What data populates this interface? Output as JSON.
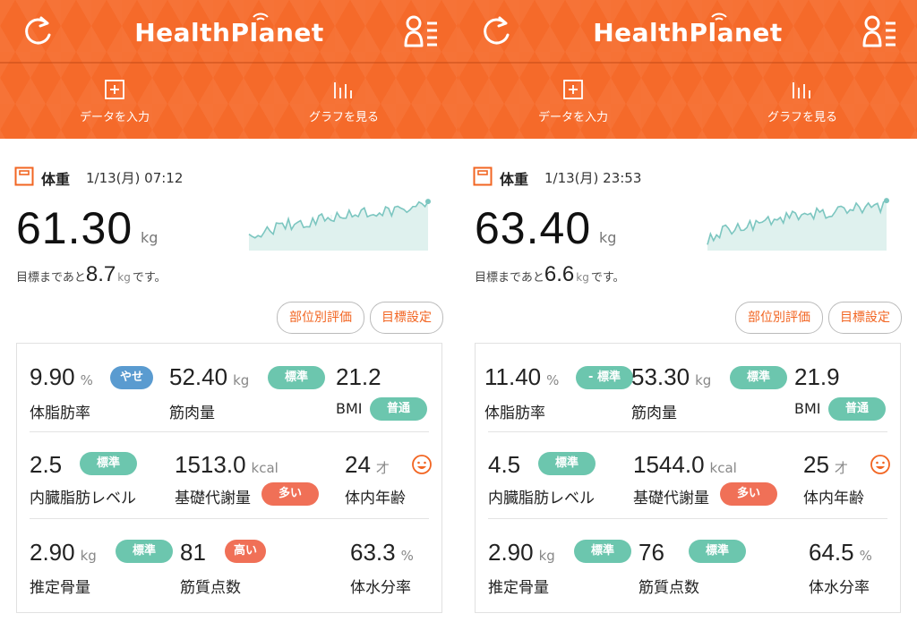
{
  "app": {
    "logo": "HealthPlanet",
    "menu": {
      "input_label": "データを入力",
      "graph_label": "グラフを見る"
    },
    "icons": {
      "refresh": "refresh-icon",
      "profile": "profile-menu-icon",
      "input": "plus-square-icon",
      "graph": "bar-graph-icon",
      "weight": "scale-icon",
      "age": "smile-face-icon"
    }
  },
  "colors": {
    "brand_orange": "#f56a2a",
    "badge_green": "#6cc6ae",
    "badge_blue": "#5a9bd0",
    "badge_red": "#f07057",
    "chart_line": "#7cc6c0"
  },
  "panels": [
    {
      "weight": {
        "label": "体重",
        "date": "1/13(月) 07:12",
        "value": "61.30",
        "unit": "kg"
      },
      "goal": {
        "prefix": "目標まであと",
        "value": "8.7",
        "unit": "kg",
        "suffix": "です。"
      },
      "buttons": {
        "part_eval": "部位別評価",
        "goal_setting": "目標設定"
      },
      "metrics": {
        "body_fat": {
          "value": "9.90",
          "unit": "%",
          "badge": "やせ",
          "label": "体脂肪率"
        },
        "muscle": {
          "value": "52.40",
          "unit": "kg",
          "badge": "標準",
          "label": "筋肉量"
        },
        "bmi": {
          "value": "21.2",
          "badge": "普通",
          "label": "BMI"
        },
        "visceral": {
          "value": "2.5",
          "badge": "標準",
          "label": "内臓脂肪レベル"
        },
        "bmr": {
          "value": "1513.0",
          "unit": "kcal",
          "badge": "多い",
          "label": "基礎代謝量"
        },
        "age": {
          "value": "24",
          "unit": "才",
          "label": "体内年齢"
        },
        "bone": {
          "value": "2.90",
          "unit": "kg",
          "badge": "標準",
          "label": "推定骨量"
        },
        "muscle_score": {
          "value": "81",
          "badge": "高い",
          "label": "筋質点数"
        },
        "water": {
          "value": "63.3",
          "unit": "%",
          "label": "体水分率"
        }
      }
    },
    {
      "weight": {
        "label": "体重",
        "date": "1/13(月) 23:53",
        "value": "63.40",
        "unit": "kg"
      },
      "goal": {
        "prefix": "目標まであと",
        "value": "6.6",
        "unit": "kg",
        "suffix": "です。"
      },
      "buttons": {
        "part_eval": "部位別評価",
        "goal_setting": "目標設定"
      },
      "metrics": {
        "body_fat": {
          "value": "11.40",
          "unit": "%",
          "badge": "- 標準",
          "label": "体脂肪率"
        },
        "muscle": {
          "value": "53.30",
          "unit": "kg",
          "badge": "標準",
          "label": "筋肉量"
        },
        "bmi": {
          "value": "21.9",
          "badge": "普通",
          "label": "BMI"
        },
        "visceral": {
          "value": "4.5",
          "badge": "標準",
          "label": "内臓脂肪レベル"
        },
        "bmr": {
          "value": "1544.0",
          "unit": "kcal",
          "badge": "多い",
          "label": "基礎代謝量"
        },
        "age": {
          "value": "25",
          "unit": "才",
          "label": "体内年齢"
        },
        "bone": {
          "value": "2.90",
          "unit": "kg",
          "badge": "標準",
          "label": "推定骨量"
        },
        "muscle_score": {
          "value": "76",
          "badge": "標準",
          "label": "筋質点数"
        },
        "water": {
          "value": "64.5",
          "unit": "%",
          "label": "体水分率"
        }
      }
    }
  ]
}
